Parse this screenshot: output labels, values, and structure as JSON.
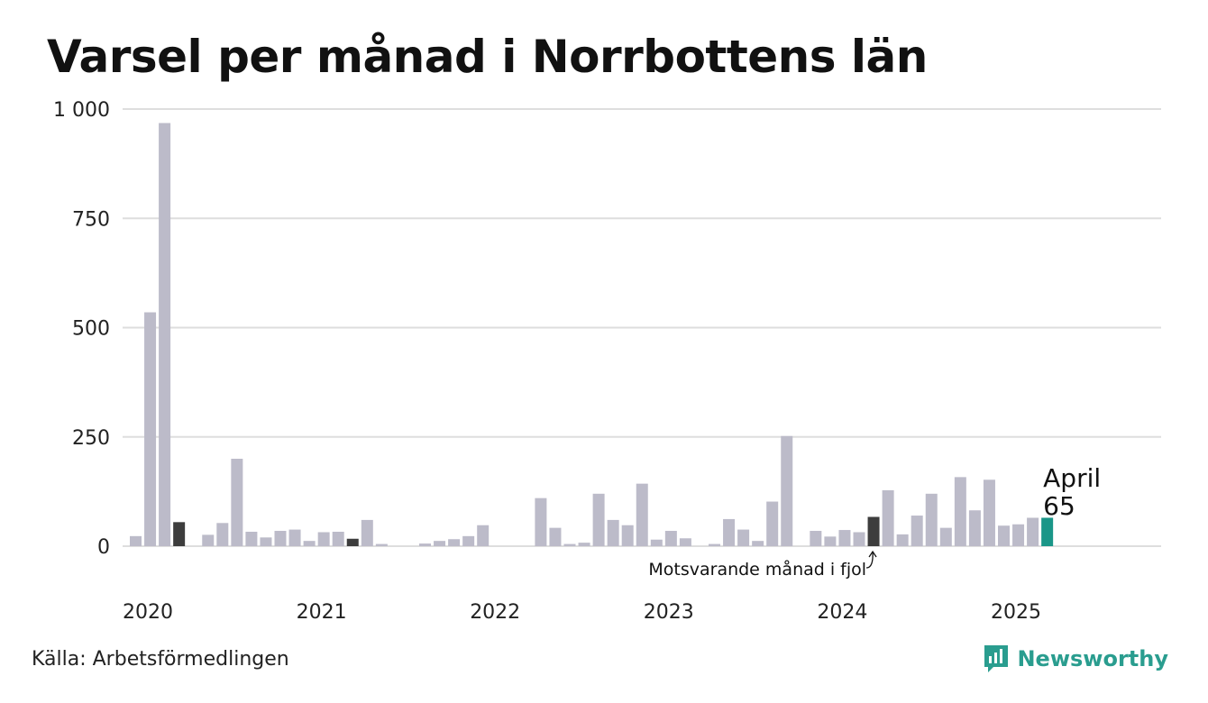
{
  "title": "Varsel per månad i Norrbottens län",
  "source": "Källa: Arbetsförmedlingen",
  "brand": {
    "name": "Newsworthy",
    "icon": "newsworthy-logo-icon",
    "color": "#2a9d8f"
  },
  "colors": {
    "bar": "#bcbbc9",
    "same_month": "#3d3d3d",
    "current": "#1a9688",
    "grid": "#dedede"
  },
  "chart_data": {
    "type": "bar",
    "title": "Varsel per månad i Norrbottens län",
    "xlabel": "",
    "ylabel": "",
    "ylim": [
      0,
      1000
    ],
    "yticks": [
      0,
      250,
      500,
      750,
      1000
    ],
    "ytick_labels": [
      "0",
      "250",
      "500",
      "750",
      "1 000"
    ],
    "xtick_labels": [
      {
        "label": "2020",
        "at": "2020-01"
      },
      {
        "label": "2021",
        "at": "2021-01"
      },
      {
        "label": "2022",
        "at": "2022-01"
      },
      {
        "label": "2023",
        "at": "2023-01"
      },
      {
        "label": "2024",
        "at": "2024-01"
      },
      {
        "label": "2025",
        "at": "2025-01"
      }
    ],
    "start_month": "2020-01",
    "end_month": "2025-12",
    "categories": [
      "2020-01",
      "2020-02",
      "2020-03",
      "2020-04",
      "2020-05",
      "2020-06",
      "2020-07",
      "2020-08",
      "2020-09",
      "2020-10",
      "2020-11",
      "2020-12",
      "2021-01",
      "2021-02",
      "2021-03",
      "2021-04",
      "2021-05",
      "2021-06",
      "2021-07",
      "2021-08",
      "2021-09",
      "2021-10",
      "2021-11",
      "2021-12",
      "2022-01",
      "2022-02",
      "2022-03",
      "2022-04",
      "2022-05",
      "2022-06",
      "2022-07",
      "2022-08",
      "2022-09",
      "2022-10",
      "2022-11",
      "2022-12",
      "2023-01",
      "2023-02",
      "2023-03",
      "2023-04",
      "2023-05",
      "2023-06",
      "2023-07",
      "2023-08",
      "2023-09",
      "2023-10",
      "2023-11",
      "2023-12",
      "2024-01",
      "2024-02",
      "2024-03",
      "2024-04",
      "2024-05",
      "2024-06",
      "2024-07",
      "2024-08",
      "2024-09",
      "2024-10",
      "2024-11",
      "2024-12",
      "2025-01",
      "2025-02",
      "2025-03",
      "2025-04"
    ],
    "values": [
      23,
      535,
      968,
      55,
      0,
      26,
      53,
      200,
      33,
      20,
      35,
      38,
      12,
      32,
      33,
      17,
      60,
      5,
      0,
      0,
      6,
      12,
      16,
      23,
      48,
      0,
      0,
      0,
      110,
      42,
      5,
      8,
      120,
      60,
      48,
      143,
      15,
      35,
      18,
      0,
      5,
      62,
      38,
      12,
      102,
      252,
      0,
      35,
      22,
      37,
      32,
      67,
      128,
      27,
      70,
      120,
      42,
      158,
      82,
      152,
      47,
      50,
      65,
      65
    ],
    "highlight_same_month": [
      "2020-04",
      "2021-04",
      "2023-04",
      "2024-04"
    ],
    "current_month": "2025-04",
    "annotations": {
      "current": {
        "month": "2025-04",
        "label": "April",
        "value": 65
      },
      "previous_year": {
        "month": "2024-04",
        "text": "Motsvarande månad i fjol"
      }
    }
  }
}
